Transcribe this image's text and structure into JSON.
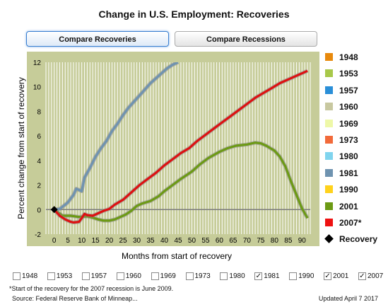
{
  "chart_data": {
    "type": "line",
    "title": "Change in U.S. Employment: Recoveries",
    "xlabel": "Months from start of recovery",
    "ylabel": "Percent change from start of recovery",
    "xlim": [
      -3,
      93
    ],
    "ylim": [
      -2,
      12
    ],
    "xticks": [
      0,
      5,
      10,
      15,
      20,
      25,
      30,
      35,
      40,
      45,
      50,
      55,
      60,
      65,
      70,
      75,
      80,
      85,
      90
    ],
    "yticks": [
      -2,
      0,
      2,
      4,
      6,
      8,
      10,
      12
    ],
    "grid": "vertical",
    "background": "#c6cc99",
    "marker": {
      "name": "Recovery",
      "x": 0,
      "y": 0
    },
    "series": [
      {
        "name": "1981",
        "color": "#6f93b0",
        "x": [
          0,
          2,
          4,
          5,
          6,
          7,
          8,
          9,
          10,
          11,
          13,
          15,
          17,
          19,
          21,
          23,
          25,
          27,
          29,
          31,
          33,
          35,
          37,
          39,
          41,
          43,
          45
        ],
        "y": [
          0,
          0.05,
          0.4,
          0.6,
          0.9,
          1.2,
          1.7,
          1.6,
          1.5,
          2.6,
          3.4,
          4.3,
          5.0,
          5.6,
          6.4,
          7.0,
          7.7,
          8.3,
          8.8,
          9.3,
          9.8,
          10.3,
          10.7,
          11.1,
          11.5,
          11.8,
          12.0
        ]
      },
      {
        "name": "2001",
        "color": "#6c9a14",
        "x": [
          0,
          3,
          6,
          9,
          12,
          14,
          16,
          18,
          20,
          22,
          24,
          26,
          28,
          30,
          32,
          35,
          38,
          40,
          43,
          46,
          50,
          53,
          56,
          60,
          63,
          66,
          70,
          73,
          75,
          77,
          80,
          82,
          84,
          86,
          88,
          90,
          92
        ],
        "y": [
          0,
          -0.5,
          -0.5,
          -0.6,
          -0.55,
          -0.65,
          -0.8,
          -0.9,
          -0.9,
          -0.8,
          -0.6,
          -0.4,
          -0.1,
          0.3,
          0.5,
          0.7,
          1.1,
          1.5,
          2.0,
          2.5,
          3.1,
          3.7,
          4.2,
          4.7,
          5.0,
          5.2,
          5.3,
          5.45,
          5.4,
          5.2,
          4.8,
          4.3,
          3.5,
          2.3,
          1.2,
          0.1,
          -0.7
        ]
      },
      {
        "name": "2007*",
        "color": "#dd1111",
        "x": [
          0,
          2,
          4,
          6,
          7,
          9,
          10,
          11,
          12,
          14,
          16,
          18,
          20,
          22,
          25,
          28,
          31,
          34,
          37,
          40,
          43,
          46,
          49,
          52,
          55,
          58,
          61,
          64,
          67,
          70,
          73,
          76,
          79,
          82,
          85,
          88,
          91,
          92
        ],
        "y": [
          0,
          -0.5,
          -0.8,
          -1.0,
          -1.05,
          -1.0,
          -0.7,
          -0.35,
          -0.45,
          -0.5,
          -0.3,
          -0.1,
          0.05,
          0.4,
          0.8,
          1.4,
          2.0,
          2.5,
          3.0,
          3.6,
          4.1,
          4.6,
          5.0,
          5.6,
          6.1,
          6.6,
          7.1,
          7.6,
          8.1,
          8.6,
          9.1,
          9.5,
          9.9,
          10.3,
          10.6,
          10.9,
          11.2,
          11.3
        ]
      }
    ]
  },
  "tabs": {
    "recoveries": "Compare Recoveries",
    "recessions": "Compare Recessions"
  },
  "legend": [
    {
      "label": "1948",
      "color": "#e8890c"
    },
    {
      "label": "1953",
      "color": "#a8c84a"
    },
    {
      "label": "1957",
      "color": "#2a8fd8"
    },
    {
      "label": "1960",
      "color": "#c8c8a0"
    },
    {
      "label": "1969",
      "color": "#eef8a8"
    },
    {
      "label": "1973",
      "color": "#f26a3a"
    },
    {
      "label": "1980",
      "color": "#80d4ee"
    },
    {
      "label": "1981",
      "color": "#6f93b0"
    },
    {
      "label": "1990",
      "color": "#ffd21c"
    },
    {
      "label": "2001",
      "color": "#6c9a14"
    },
    {
      "label": "2007*",
      "color": "#ee1111"
    }
  ],
  "legend_marker_label": "Recovery",
  "checkboxes": [
    {
      "label": "1948",
      "checked": false
    },
    {
      "label": "1953",
      "checked": false
    },
    {
      "label": "1957",
      "checked": false
    },
    {
      "label": "1960",
      "checked": false
    },
    {
      "label": "1969",
      "checked": false
    },
    {
      "label": "1973",
      "checked": false
    },
    {
      "label": "1980",
      "checked": false
    },
    {
      "label": "1981",
      "checked": true
    },
    {
      "label": "1990",
      "checked": false
    },
    {
      "label": "2001",
      "checked": true
    },
    {
      "label": "2007",
      "checked": true
    }
  ],
  "footnote": "*Start of the recovery for the 2007 recession is June 2009.",
  "source": "Source: Federal Reserve Bank of Minneap...",
  "updated": "Updated April 7 2017"
}
